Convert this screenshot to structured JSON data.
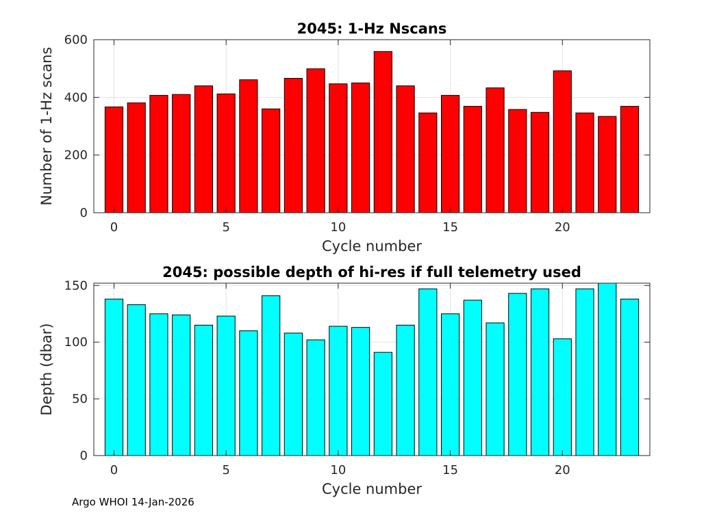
{
  "chart_data": [
    {
      "type": "bar",
      "title": "2045: 1-Hz Nscans",
      "xlabel": "Cycle number",
      "ylabel": "Number of 1-Hz scans",
      "x": [
        0,
        1,
        2,
        3,
        4,
        5,
        6,
        7,
        8,
        9,
        10,
        11,
        12,
        13,
        14,
        15,
        16,
        17,
        18,
        19,
        20,
        21,
        22,
        23
      ],
      "values": [
        367,
        381,
        407,
        410,
        440,
        412,
        461,
        360,
        466,
        499,
        447,
        450,
        559,
        440,
        346,
        407,
        369,
        433,
        358,
        348,
        492,
        346,
        334,
        369
      ],
      "xlim": [
        -0.9,
        23.9
      ],
      "ylim": [
        0,
        600
      ],
      "xticks": [
        0,
        5,
        10,
        15,
        20
      ],
      "yticks": [
        0,
        200,
        400,
        600
      ],
      "grid": true,
      "bar_color": "#ff0000"
    },
    {
      "type": "bar",
      "title": "2045: possible depth of hi-res if full telemetry used",
      "xlabel": "Cycle number",
      "ylabel": "Depth (dbar)",
      "x": [
        0,
        1,
        2,
        3,
        4,
        5,
        6,
        7,
        8,
        9,
        10,
        11,
        12,
        13,
        14,
        15,
        16,
        17,
        18,
        19,
        20,
        21,
        22,
        23
      ],
      "values": [
        138,
        133,
        125,
        124,
        115,
        123,
        110,
        141,
        108,
        102,
        114,
        113,
        91,
        115,
        147,
        125,
        137,
        117,
        143,
        147,
        103,
        147,
        153,
        138
      ],
      "xlim": [
        -0.9,
        23.9
      ],
      "ylim": [
        0,
        152
      ],
      "xticks": [
        0,
        5,
        10,
        15,
        20
      ],
      "yticks": [
        0,
        50,
        100,
        150
      ],
      "grid": true,
      "bar_color": "#00ffff"
    }
  ],
  "footer": "Argo WHOI 14-Jan-2026"
}
